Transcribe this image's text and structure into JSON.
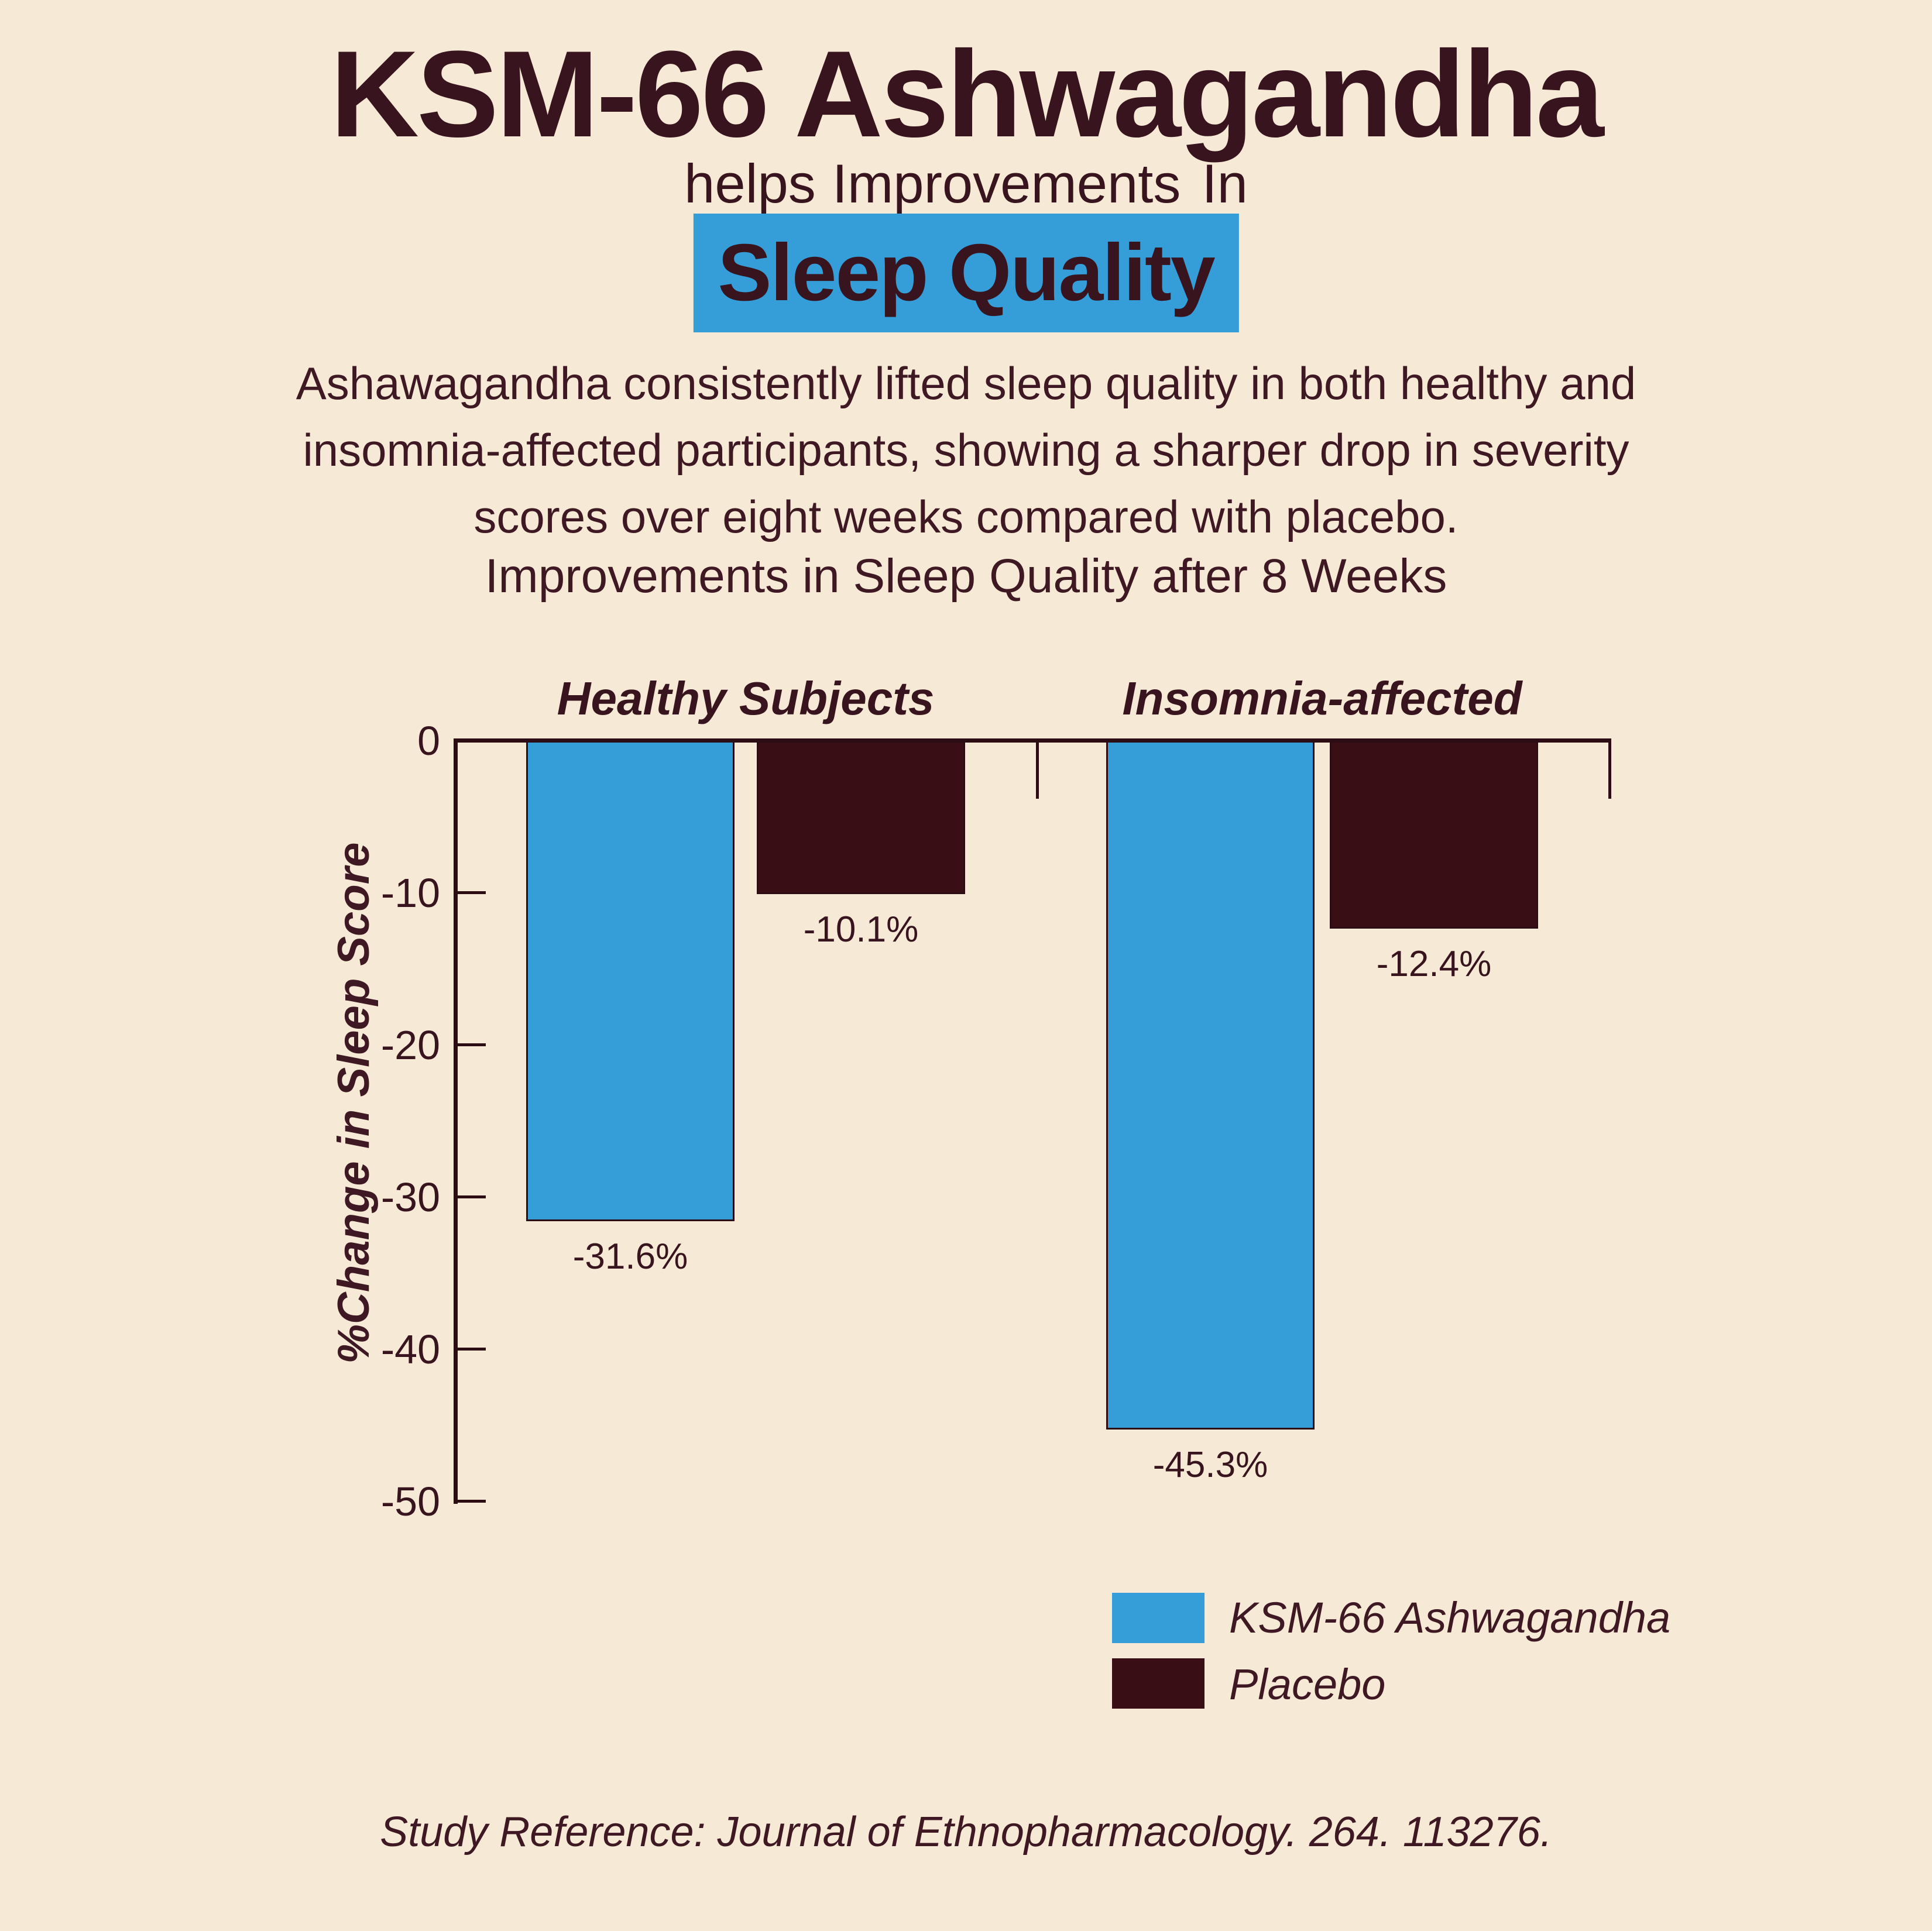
{
  "page": {
    "title": "KSM-66 Ashwagandha",
    "subtitle_prefix": "helps ",
    "subtitle_underlined": "Improvements",
    "subtitle_suffix": " In",
    "highlight": "Sleep Quality",
    "paragraph_lines": [
      "Ashawagandha consistently lifted sleep quality in both healthy and",
      "insomnia-affected participants, showing a sharper drop in severity",
      "scores over eight weeks compared with placebo."
    ],
    "footer": "Study Reference: Journal of Ethnopharmacology. 264. 113276."
  },
  "colors": {
    "background": "#F6EAD6",
    "accent_blue": "#359ED8",
    "dark_maroon": "#3A0E15",
    "text_dark": "#38141F",
    "axis": "#2B0D13"
  },
  "chart_data": {
    "type": "bar",
    "title": "Improvements in Sleep Quality after 8 Weeks",
    "categories": [
      "Healthy Subjects",
      "Insomnia-affected"
    ],
    "series": [
      {
        "name": "KSM-66 Ashwagandha",
        "color": "#359ED8",
        "values": [
          -31.6,
          -45.3
        ],
        "labels": [
          "-31.6%",
          "-45.3%"
        ]
      },
      {
        "name": "Placebo",
        "color": "#3A0E15",
        "values": [
          -10.1,
          -12.4
        ],
        "labels": [
          "-10.1%",
          "-12.4%"
        ]
      }
    ],
    "xlabel": "",
    "ylabel": "%Change in Sleep Score",
    "yticks": [
      "0",
      "-10",
      "-20",
      "-30",
      "-40",
      "-50"
    ],
    "ylim": [
      -50,
      0
    ],
    "grid": false,
    "legend_position": "bottom-right"
  }
}
